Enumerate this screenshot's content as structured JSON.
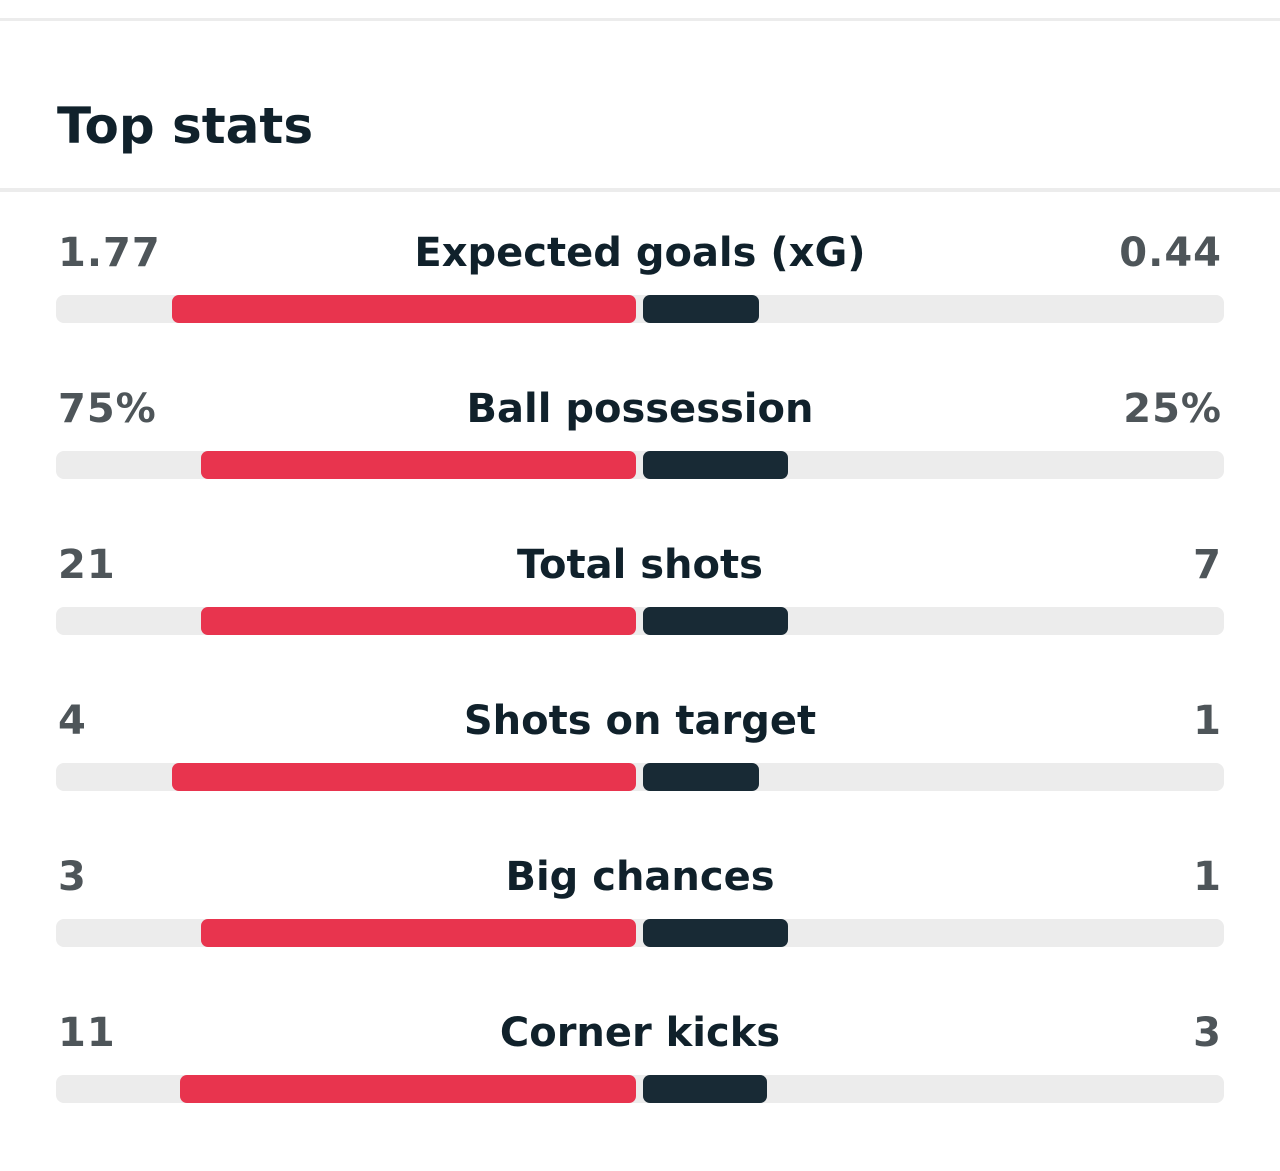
{
  "title": "Top stats",
  "colors": {
    "home_bar": "#e8344e",
    "away_bar": "#182a35",
    "track": "#ececec"
  },
  "stats": [
    {
      "label": "Expected goals (xG)",
      "home": "1.77",
      "away": "0.44",
      "home_share": 0.8,
      "away_share": 0.2
    },
    {
      "label": "Ball possession",
      "home": "75%",
      "away": "25%",
      "home_share": 0.75,
      "away_share": 0.25
    },
    {
      "label": "Total shots",
      "home": "21",
      "away": "7",
      "home_share": 0.75,
      "away_share": 0.25
    },
    {
      "label": "Shots on target",
      "home": "4",
      "away": "1",
      "home_share": 0.8,
      "away_share": 0.2
    },
    {
      "label": "Big chances",
      "home": "3",
      "away": "1",
      "home_share": 0.75,
      "away_share": 0.25
    },
    {
      "label": "Corner kicks",
      "home": "11",
      "away": "3",
      "home_share": 0.786,
      "away_share": 0.214
    }
  ]
}
